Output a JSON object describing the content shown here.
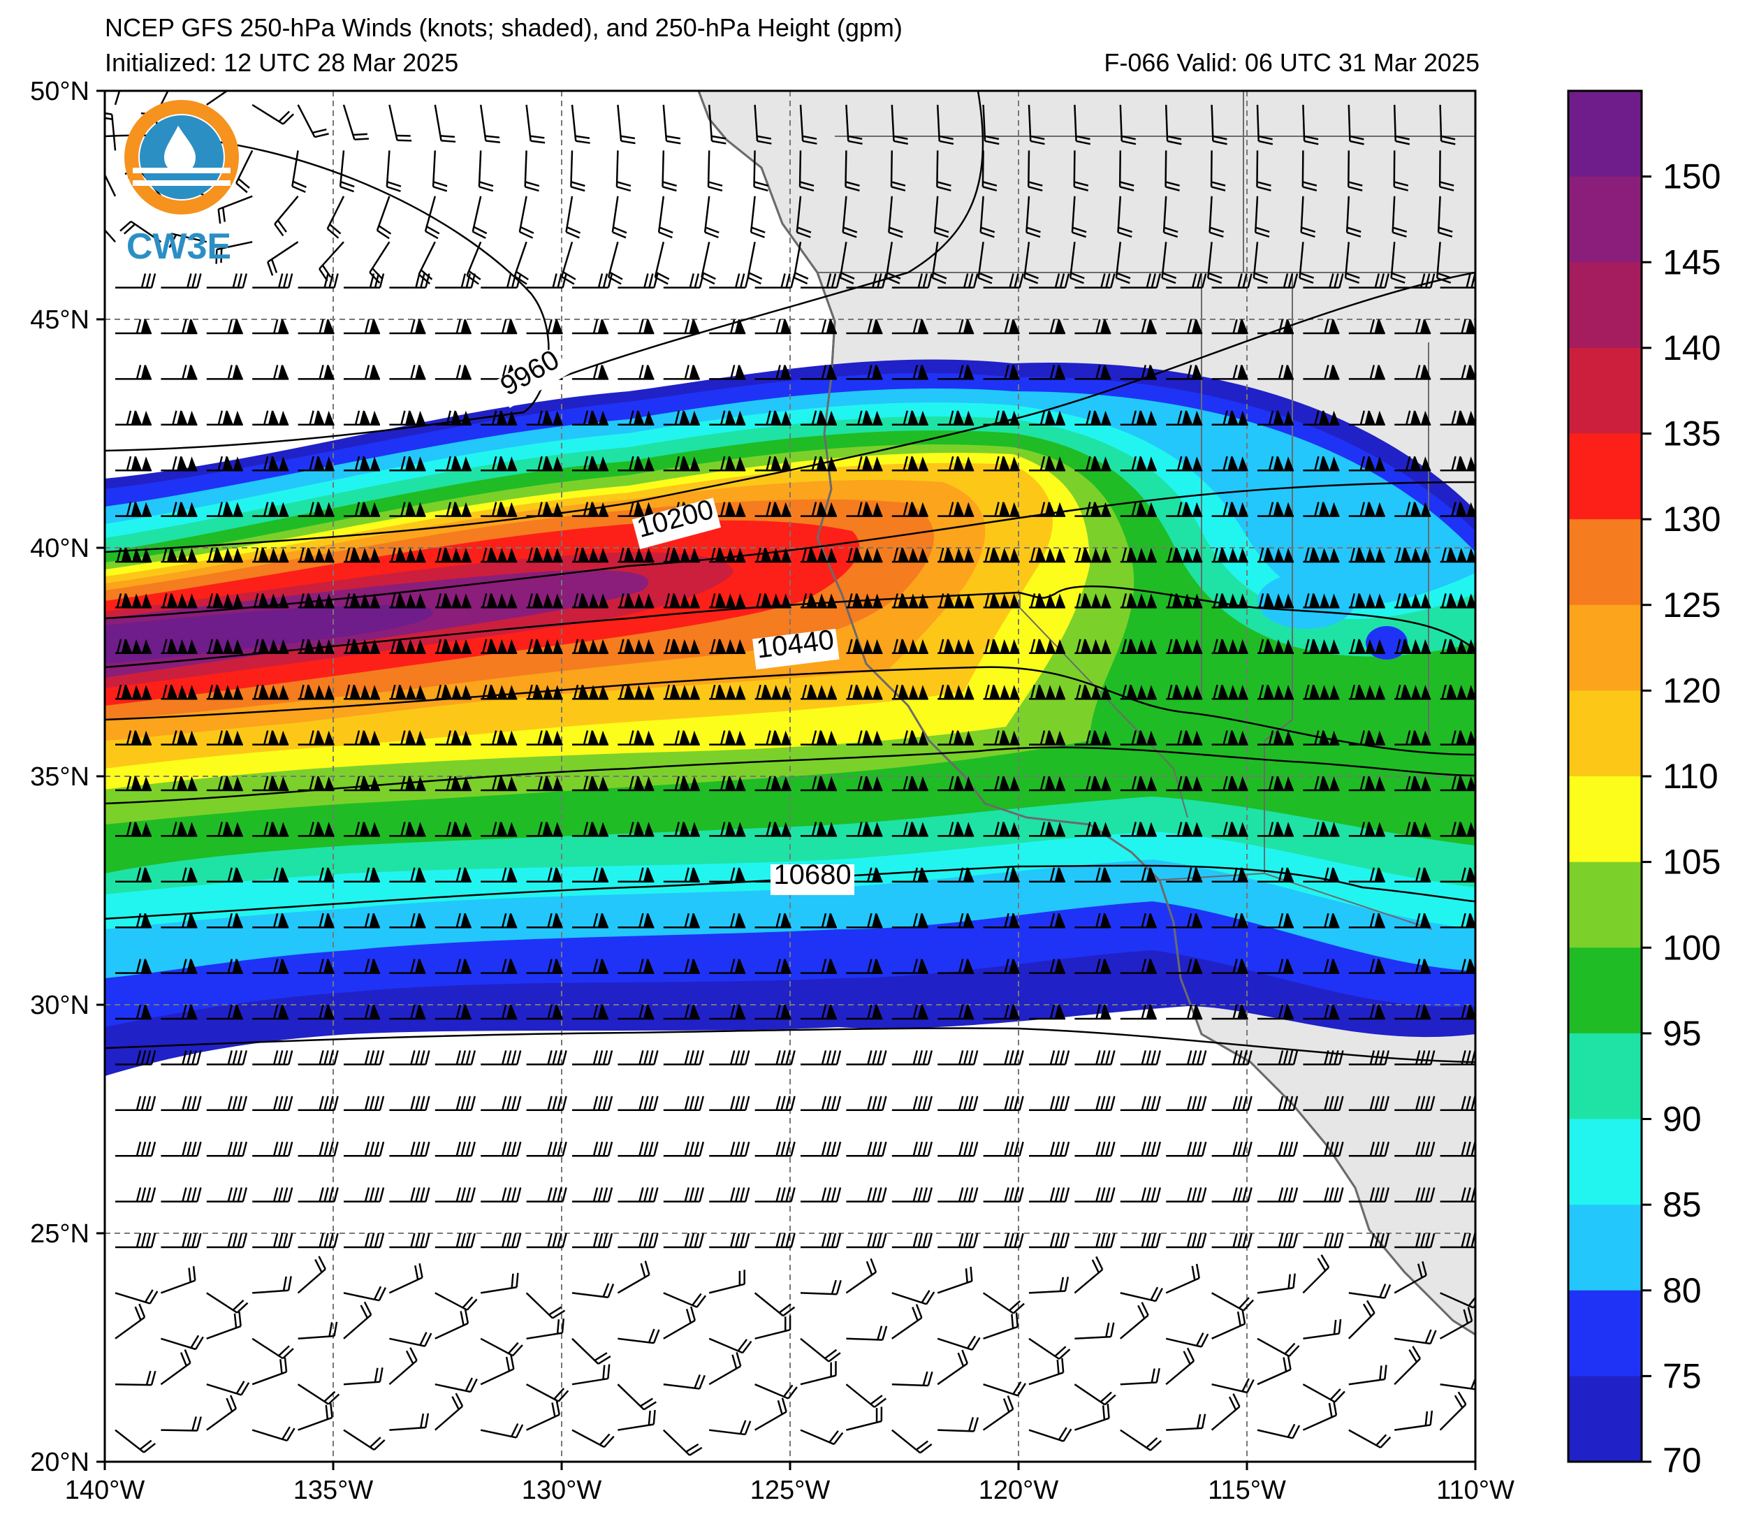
{
  "title": {
    "line1": "NCEP GFS 250-hPa Winds (knots; shaded), and 250-hPa Height (gpm)",
    "initialized": "Initialized: 12 UTC 28 Mar 2025",
    "valid": "F-066  Valid: 06 UTC 31 Mar 2025"
  },
  "logo": {
    "text": "CW3E"
  },
  "map": {
    "lon_range": [
      -140,
      -110
    ],
    "lat_range": [
      20,
      50
    ],
    "lat_labels": [
      "50°N",
      "45°N",
      "40°N",
      "35°N",
      "30°N",
      "25°N",
      "20°N"
    ],
    "lon_labels": [
      "140°W",
      "135°W",
      "130°W",
      "125°W",
      "120°W",
      "115°W",
      "110°W"
    ],
    "gridlines": "dashed",
    "land_color": "#e6e6e6",
    "coast_color": "#6b6b6b"
  },
  "contours": [
    {
      "label": "9960"
    },
    {
      "label": "10200"
    },
    {
      "label": "10440"
    },
    {
      "label": "10680"
    }
  ],
  "colorbar": {
    "labels": [
      "150",
      "145",
      "140",
      "135",
      "130",
      "125",
      "120",
      "110",
      "105",
      "100",
      "95",
      "90",
      "85",
      "80",
      "75",
      "70"
    ],
    "colors": [
      "#6f1d8a",
      "#8a1e7a",
      "#a51d5f",
      "#cc1f3d",
      "#fd2018",
      "#f57c1f",
      "#fba41c",
      "#fdc718",
      "#fdfd1b",
      "#7bd12a",
      "#20bc25",
      "#1ee3a5",
      "#22f5f0",
      "#23c7fb",
      "#1f33f6",
      "#2121c8"
    ]
  },
  "chart_data": {
    "type": "heatmap",
    "title": "NCEP GFS 250-hPa Winds (knots; shaded), and 250-hPa Height (gpm)",
    "xlabel": "",
    "ylabel": "",
    "xlim": [
      -140,
      -110
    ],
    "ylim": [
      20,
      50
    ],
    "colorbar_ticks": [
      70,
      75,
      80,
      85,
      90,
      95,
      100,
      105,
      110,
      120,
      125,
      130,
      135,
      140,
      145,
      150
    ],
    "height_contour_labels": [
      9960,
      10200,
      10440,
      10680
    ],
    "jet_max_knots_approx": 150,
    "jet_core_lat_approx": 38
  }
}
